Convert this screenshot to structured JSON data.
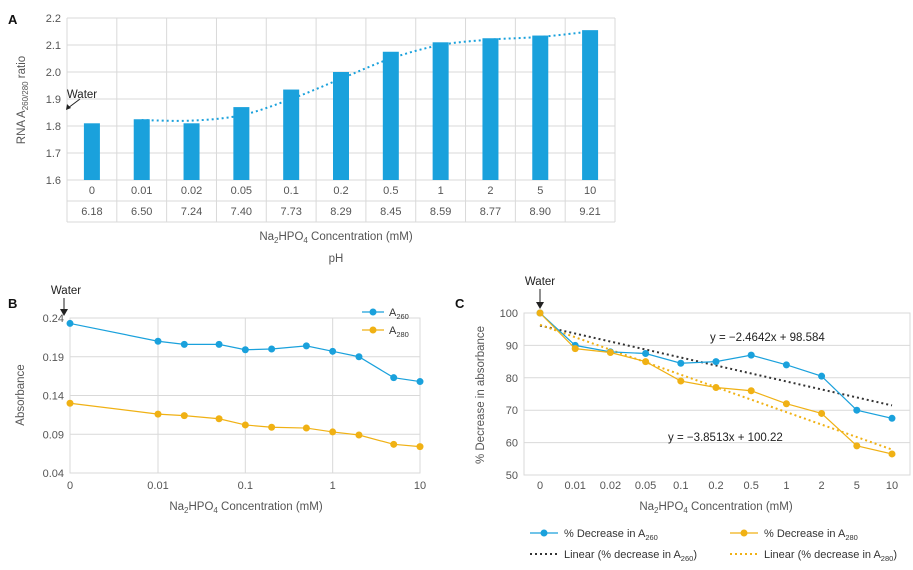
{
  "colors": {
    "blue": "#1aa1dc",
    "orange": "#f0b114",
    "dark": "#333333",
    "bar": "#1aa1dc"
  },
  "chart_data": [
    {
      "panel": "A",
      "type": "bar",
      "ylabel": "RNA A260/280 ratio",
      "ylabel_main": "RNA A",
      "ylabel_sub": "260/280",
      "ylabel_tail": " ratio",
      "ylim": [
        1.6,
        2.2
      ],
      "yticks": [
        "1.6",
        "1.7",
        "1.8",
        "1.9",
        "2.0",
        "2.1",
        "2.2"
      ],
      "categories": [
        "0",
        "0.01",
        "0.02",
        "0.05",
        "0.1",
        "0.2",
        "0.5",
        "1",
        "2",
        "5",
        "10"
      ],
      "ph": [
        "6.18",
        "6.50",
        "7.24",
        "7.40",
        "7.73",
        "8.29",
        "8.45",
        "8.59",
        "8.77",
        "8.90",
        "9.21"
      ],
      "values": [
        1.81,
        1.825,
        1.81,
        1.87,
        1.935,
        2.0,
        2.075,
        2.11,
        2.125,
        2.135,
        2.155
      ],
      "trend": [
        null,
        1.822,
        1.82,
        1.84,
        1.9,
        1.975,
        2.05,
        2.1,
        2.12,
        2.13,
        2.15
      ],
      "annotation": "Water",
      "xlabel": "Na2HPO4 Concentration (mM)",
      "xlabel_parts": [
        "Na",
        "2",
        "HPO",
        "4",
        " Concentration (mM)"
      ],
      "xlabel2": "pH"
    },
    {
      "panel": "B",
      "type": "line",
      "ylabel": "Absorbance",
      "ylim": [
        0.04,
        0.24
      ],
      "yticks": [
        "0.04",
        "0.09",
        "0.14",
        "0.19",
        "0.24"
      ],
      "x": [
        0,
        0.01,
        0.02,
        0.05,
        0.1,
        0.2,
        0.5,
        1,
        2,
        5,
        10
      ],
      "xticks": [
        "0",
        "0.01",
        "0.1",
        "1",
        "10"
      ],
      "series": [
        {
          "name": "A260",
          "name_main": "A",
          "name_sub": "260",
          "color": "#1aa1dc",
          "values": [
            0.233,
            0.21,
            0.206,
            0.206,
            0.199,
            0.2,
            0.204,
            0.197,
            0.19,
            0.163,
            0.158
          ]
        },
        {
          "name": "A280",
          "name_main": "A",
          "name_sub": "280",
          "color": "#f0b114",
          "values": [
            0.13,
            0.116,
            0.114,
            0.11,
            0.102,
            0.099,
            0.098,
            0.093,
            0.089,
            0.077,
            0.074
          ]
        }
      ],
      "annotation": "Water",
      "xlabel": "Na2HPO4 Concentration (mM)",
      "xlabel_parts": [
        "Na",
        "2",
        "HPO",
        "4",
        " Concentration (mM)"
      ]
    },
    {
      "panel": "C",
      "type": "line",
      "ylabel": "% Decrease in absorbance",
      "ylim": [
        50,
        100
      ],
      "yticks": [
        "50",
        "60",
        "70",
        "80",
        "90",
        "100"
      ],
      "categories": [
        "0",
        "0.01",
        "0.02",
        "0.05",
        "0.1",
        "0.2",
        "0.5",
        "1",
        "2",
        "5",
        "10"
      ],
      "series": [
        {
          "name": "% Decrease in A260",
          "name_main": "% Decrease in A",
          "name_sub": "260",
          "color": "#1aa1dc",
          "values": [
            100,
            90,
            88,
            87.5,
            84.5,
            85,
            87,
            84,
            80.5,
            70,
            67.5
          ]
        },
        {
          "name": "% Decrease in A280",
          "name_main": "% Decrease in A",
          "name_sub": "280",
          "color": "#f0b114",
          "values": [
            100,
            89,
            87.8,
            85,
            79,
            77,
            76,
            72,
            69,
            59,
            56.5
          ]
        }
      ],
      "linear_fits": [
        {
          "name": "Linear (% decrease in A260)",
          "name_main": "Linear (% decrease in A",
          "name_sub": "260",
          "name_tail": ")",
          "slope": -2.4642,
          "intercept": 98.584,
          "color": "#333333",
          "equation": "y = −2.4642x + 98.584"
        },
        {
          "name": "Linear (% decrease in A280)",
          "name_main": "Linear (% decrease in A",
          "name_sub": "280",
          "name_tail": ")",
          "slope": -3.8513,
          "intercept": 100.22,
          "color": "#f0b114",
          "equation": "y = −3.8513x + 100.22"
        }
      ],
      "annotation": "Water",
      "xlabel": "Na2HPO4 Concentration (mM)",
      "xlabel_parts": [
        "Na",
        "2",
        "HPO",
        "4",
        " Concentration (mM)"
      ]
    }
  ]
}
